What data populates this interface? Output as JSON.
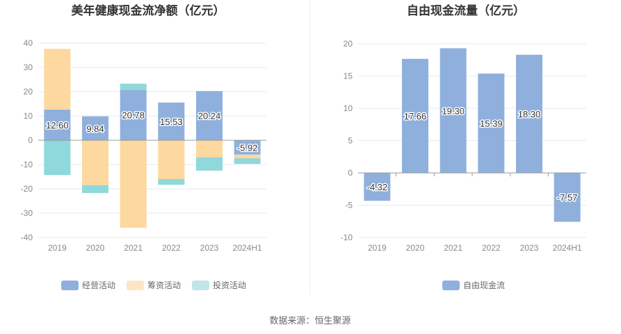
{
  "source": "数据来源：恒生聚源",
  "chart_data": [
    {
      "type": "bar",
      "stacked": true,
      "title": "美年健康现金流净额（亿元）",
      "categories": [
        "2019",
        "2020",
        "2021",
        "2022",
        "2023",
        "2024H1"
      ],
      "ylim": [
        -40,
        40
      ],
      "yticks": [
        40,
        30,
        20,
        10,
        0,
        -10,
        -20,
        -30,
        -40
      ],
      "grid": true,
      "legend_position": "bottom",
      "series": [
        {
          "name": "经营活动",
          "color": "#8fb0dd",
          "values": [
            12.6,
            9.84,
            20.78,
            15.53,
            20.24,
            -5.92
          ],
          "labels": [
            "12.60",
            "9.84",
            "20.78",
            "15.53",
            "20.24",
            "-5.92"
          ]
        },
        {
          "name": "筹资活动",
          "color": "#fdd89f",
          "values": [
            25.0,
            -18.5,
            -36.0,
            -16.0,
            -7.0,
            -1.5
          ]
        },
        {
          "name": "投资活动",
          "color": "#8fd8dc",
          "values": [
            -14.3,
            -3.2,
            2.5,
            -2.3,
            -5.5,
            -2.3
          ]
        }
      ]
    },
    {
      "type": "bar",
      "title": "自由现金流量（亿元）",
      "categories": [
        "2019",
        "2020",
        "2021",
        "2022",
        "2023",
        "2024H1"
      ],
      "ylim": [
        -10,
        20
      ],
      "yticks": [
        20,
        15,
        10,
        5,
        0,
        -5,
        -10
      ],
      "grid": true,
      "legend_position": "bottom",
      "series": [
        {
          "name": "自由现金流",
          "color": "#8fb0dd",
          "values": [
            -4.32,
            17.66,
            19.3,
            15.39,
            18.3,
            -7.57
          ],
          "labels": [
            "-4.32",
            "17.66",
            "19.30",
            "15.39",
            "18.30",
            "-7.57"
          ]
        }
      ]
    }
  ]
}
